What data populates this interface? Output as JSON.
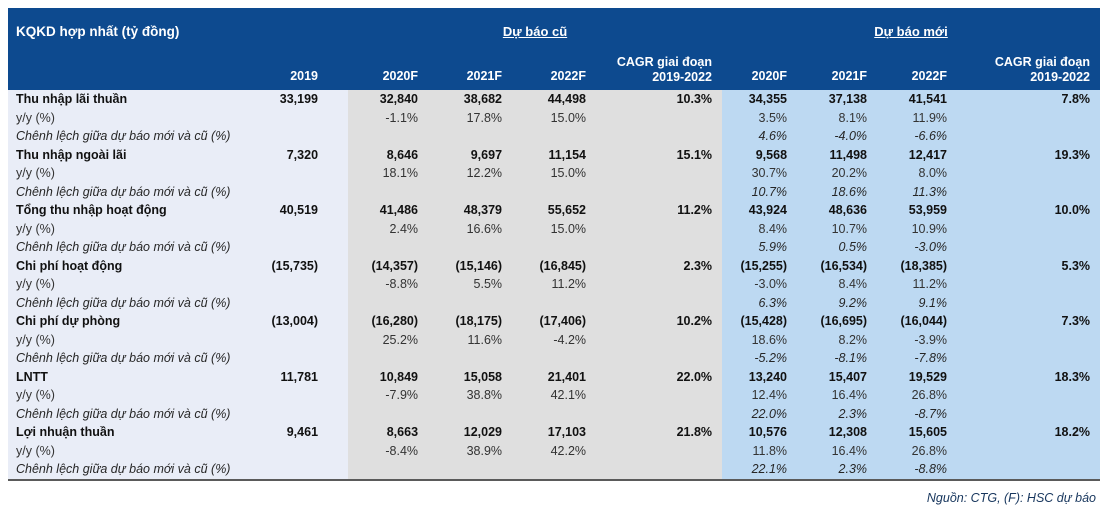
{
  "header": {
    "title": "KQKD hợp nhất (tỷ đồng)",
    "old_section_label": "Dự báo cũ",
    "new_section_label": "Dự báo mới",
    "columns": [
      "2019",
      "2020F",
      "2021F",
      "2022F",
      "CAGR giai đoạn 2019-2022",
      "2020F",
      "2021F",
      "2022F",
      "CAGR giai đoạn 2019-2022"
    ]
  },
  "rows": [
    {
      "label": "Thu nhập lãi thuần",
      "style": "metric",
      "values": [
        "33,199",
        "32,840",
        "38,682",
        "44,498",
        "10.3%",
        "34,355",
        "37,138",
        "41,541",
        "7.8%"
      ]
    },
    {
      "label": "y/y (%)",
      "style": "yoy",
      "values": [
        "",
        "-1.1%",
        "17.8%",
        "15.0%",
        "",
        "3.5%",
        "8.1%",
        "11.9%",
        ""
      ]
    },
    {
      "label": "Chênh lệch giữa dự báo mới và cũ (%)",
      "style": "diff",
      "values": [
        "",
        "",
        "",
        "",
        "",
        "4.6%",
        "-4.0%",
        "-6.6%",
        ""
      ]
    },
    {
      "label": "Thu nhập ngoài lãi",
      "style": "metric",
      "values": [
        "7,320",
        "8,646",
        "9,697",
        "11,154",
        "15.1%",
        "9,568",
        "11,498",
        "12,417",
        "19.3%"
      ]
    },
    {
      "label": "y/y (%)",
      "style": "yoy",
      "values": [
        "",
        "18.1%",
        "12.2%",
        "15.0%",
        "",
        "30.7%",
        "20.2%",
        "8.0%",
        ""
      ]
    },
    {
      "label": "Chênh lệch giữa dự báo mới và cũ (%)",
      "style": "diff",
      "values": [
        "",
        "",
        "",
        "",
        "",
        "10.7%",
        "18.6%",
        "11.3%",
        ""
      ]
    },
    {
      "label": "Tổng thu nhập hoạt động",
      "style": "metric",
      "values": [
        "40,519",
        "41,486",
        "48,379",
        "55,652",
        "11.2%",
        "43,924",
        "48,636",
        "53,959",
        "10.0%"
      ]
    },
    {
      "label": "y/y (%)",
      "style": "yoy",
      "values": [
        "",
        "2.4%",
        "16.6%",
        "15.0%",
        "",
        "8.4%",
        "10.7%",
        "10.9%",
        ""
      ]
    },
    {
      "label": "Chênh lệch giữa dự báo mới và cũ (%)",
      "style": "diff",
      "values": [
        "",
        "",
        "",
        "",
        "",
        "5.9%",
        "0.5%",
        "-3.0%",
        ""
      ]
    },
    {
      "label": "Chi phí hoạt động",
      "style": "metric",
      "values": [
        "(15,735)",
        "(14,357)",
        "(15,146)",
        "(16,845)",
        "2.3%",
        "(15,255)",
        "(16,534)",
        "(18,385)",
        "5.3%"
      ]
    },
    {
      "label": "y/y (%)",
      "style": "yoy",
      "values": [
        "",
        "-8.8%",
        "5.5%",
        "11.2%",
        "",
        "-3.0%",
        "8.4%",
        "11.2%",
        ""
      ]
    },
    {
      "label": "Chênh lệch giữa dự báo mới và cũ (%)",
      "style": "diff",
      "values": [
        "",
        "",
        "",
        "",
        "",
        "6.3%",
        "9.2%",
        "9.1%",
        ""
      ]
    },
    {
      "label": "Chi phí dự phòng",
      "style": "metric",
      "values": [
        "(13,004)",
        "(16,280)",
        "(18,175)",
        "(17,406)",
        "10.2%",
        "(15,428)",
        "(16,695)",
        "(16,044)",
        "7.3%"
      ]
    },
    {
      "label": "y/y (%)",
      "style": "yoy",
      "values": [
        "",
        "25.2%",
        "11.6%",
        "-4.2%",
        "",
        "18.6%",
        "8.2%",
        "-3.9%",
        ""
      ]
    },
    {
      "label": "Chênh lệch giữa dự báo mới và cũ (%)",
      "style": "diff",
      "values": [
        "",
        "",
        "",
        "",
        "",
        "-5.2%",
        "-8.1%",
        "-7.8%",
        ""
      ]
    },
    {
      "label": "LNTT",
      "style": "metric",
      "values": [
        "11,781",
        "10,849",
        "15,058",
        "21,401",
        "22.0%",
        "13,240",
        "15,407",
        "19,529",
        "18.3%"
      ]
    },
    {
      "label": "y/y (%)",
      "style": "yoy",
      "values": [
        "",
        "-7.9%",
        "38.8%",
        "42.1%",
        "",
        "12.4%",
        "16.4%",
        "26.8%",
        ""
      ]
    },
    {
      "label": "Chênh lệch giữa dự báo mới và cũ (%)",
      "style": "diff",
      "values": [
        "",
        "",
        "",
        "",
        "",
        "22.0%",
        "2.3%",
        "-8.7%",
        ""
      ]
    },
    {
      "label": "Lợi nhuận thuần",
      "style": "metric",
      "values": [
        "9,461",
        "8,663",
        "12,029",
        "17,103",
        "21.8%",
        "10,576",
        "12,308",
        "15,605",
        "18.2%"
      ]
    },
    {
      "label": "y/y (%)",
      "style": "yoy",
      "values": [
        "",
        "-8.4%",
        "38.9%",
        "42.2%",
        "",
        "11.8%",
        "16.4%",
        "26.8%",
        ""
      ]
    },
    {
      "label": "Chênh lệch giữa dự báo mới và cũ (%)",
      "style": "diff",
      "values": [
        "",
        "",
        "",
        "",
        "",
        "22.1%",
        "2.3%",
        "-8.8%",
        ""
      ]
    }
  ],
  "footer": {
    "source": "Nguồn: CTG, (F): HSC dự báo"
  },
  "colors": {
    "header_navy": "#0d4a8f",
    "label_and_2019_bg": "#e9edf7",
    "old_forecast_bg": "#dfdfdf",
    "new_forecast_bg": "#bdd9f2",
    "footer_text": "#17365d"
  }
}
